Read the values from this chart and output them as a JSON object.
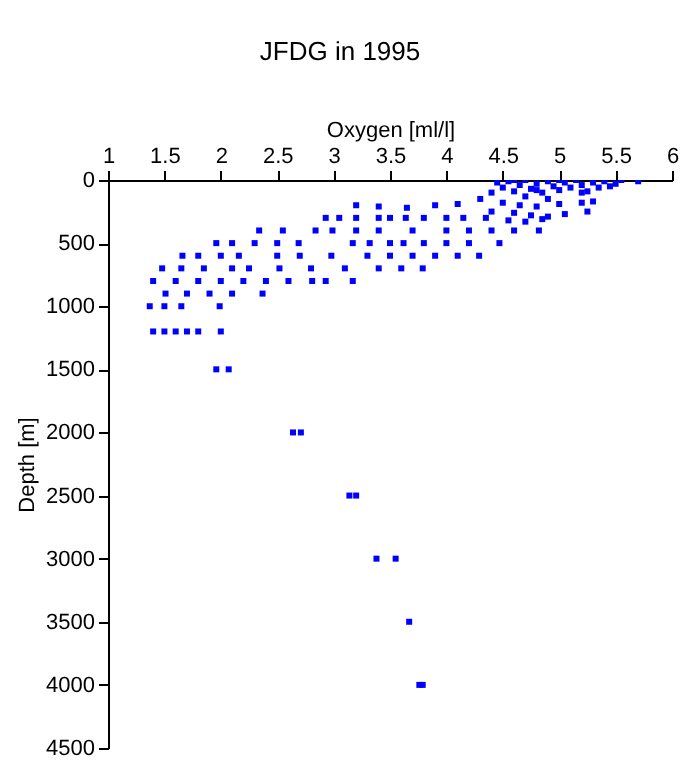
{
  "chart_data": {
    "type": "scatter",
    "title": "JFDG in 1995",
    "xlabel": "Oxygen [ml/l]",
    "ylabel": "Depth [m]",
    "xlim": [
      1,
      6
    ],
    "xticks": [
      1,
      1.5,
      2,
      2.5,
      3,
      3.5,
      4,
      4.5,
      5,
      5.5,
      6
    ],
    "ylim": [
      4500,
      0
    ],
    "yticks": [
      0,
      500,
      1000,
      1500,
      2000,
      2500,
      3000,
      3500,
      4000,
      4500
    ],
    "marker": "square",
    "grid": false,
    "series": [
      {
        "color": "#0000ff",
        "x": [
          4.45,
          4.5,
          4.55,
          4.6,
          4.65,
          4.7,
          4.75,
          4.8,
          4.85,
          4.9,
          4.95,
          5.0,
          5.05,
          5.1,
          5.15,
          5.2,
          5.25,
          5.3,
          5.35,
          5.4,
          5.45,
          5.5,
          5.55,
          5.7,
          4.4,
          4.6,
          4.8,
          5.0,
          5.2,
          4.9,
          4.7,
          4.3,
          4.5,
          4.65,
          4.8,
          5.0,
          5.2,
          5.3,
          4.4,
          4.6,
          4.75,
          4.9,
          5.05,
          5.25,
          4.55,
          4.7,
          4.85,
          3.2,
          3.4,
          3.65,
          3.9,
          4.1,
          2.93,
          3.05,
          3.2,
          3.4,
          3.5,
          3.64,
          3.8,
          4.0,
          4.15,
          4.35,
          2.34,
          2.55,
          2.84,
          2.99,
          3.2,
          3.4,
          3.7,
          4.0,
          4.2,
          4.4,
          4.6,
          4.82,
          1.96,
          2.1,
          2.3,
          2.5,
          2.69,
          3.17,
          3.32,
          3.5,
          3.62,
          3.8,
          4.0,
          4.2,
          4.47,
          1.66,
          1.8,
          2.0,
          2.16,
          2.5,
          2.7,
          2.98,
          3.3,
          3.5,
          3.7,
          3.9,
          4.1,
          4.29,
          1.48,
          1.65,
          1.85,
          2.1,
          2.25,
          2.52,
          2.8,
          3.1,
          3.4,
          3.6,
          3.79,
          1.4,
          1.6,
          1.8,
          2.0,
          2.2,
          2.4,
          2.6,
          2.81,
          2.93,
          3.17,
          1.51,
          1.7,
          1.9,
          2.1,
          2.37,
          1.37,
          1.5,
          1.65,
          1.99,
          1.4,
          1.5,
          1.6,
          1.7,
          1.8,
          2.0,
          1.96,
          2.07,
          2.64,
          2.71,
          3.14,
          3.2,
          3.38,
          3.55,
          3.67,
          3.76,
          3.79
        ],
        "values": [
          20,
          60,
          10,
          90,
          40,
          0,
          70,
          30,
          100,
          10,
          50,
          80,
          20,
          60,
          0,
          40,
          90,
          20,
          60,
          10,
          50,
          30,
          0,
          10,
          100,
          0,
          80,
          0,
          100,
          150,
          130,
          150,
          180,
          200,
          210,
          190,
          180,
          170,
          250,
          260,
          280,
          290,
          270,
          250,
          320,
          330,
          310,
          200,
          210,
          220,
          200,
          190,
          300,
          300,
          300,
          300,
          300,
          300,
          300,
          300,
          300,
          300,
          400,
          400,
          400,
          400,
          400,
          400,
          400,
          400,
          400,
          400,
          400,
          400,
          500,
          500,
          500,
          500,
          500,
          500,
          500,
          500,
          500,
          500,
          500,
          500,
          500,
          600,
          600,
          600,
          600,
          600,
          600,
          600,
          600,
          600,
          600,
          600,
          600,
          600,
          700,
          700,
          700,
          700,
          700,
          700,
          700,
          700,
          700,
          700,
          700,
          800,
          800,
          800,
          800,
          800,
          800,
          800,
          800,
          800,
          800,
          900,
          900,
          900,
          900,
          900,
          1000,
          1000,
          1000,
          1000,
          1200,
          1200,
          1200,
          1200,
          1200,
          1200,
          1500,
          1500,
          2000,
          2000,
          2500,
          2500,
          3000,
          3000,
          3500,
          4000,
          4000
        ]
      }
    ]
  }
}
